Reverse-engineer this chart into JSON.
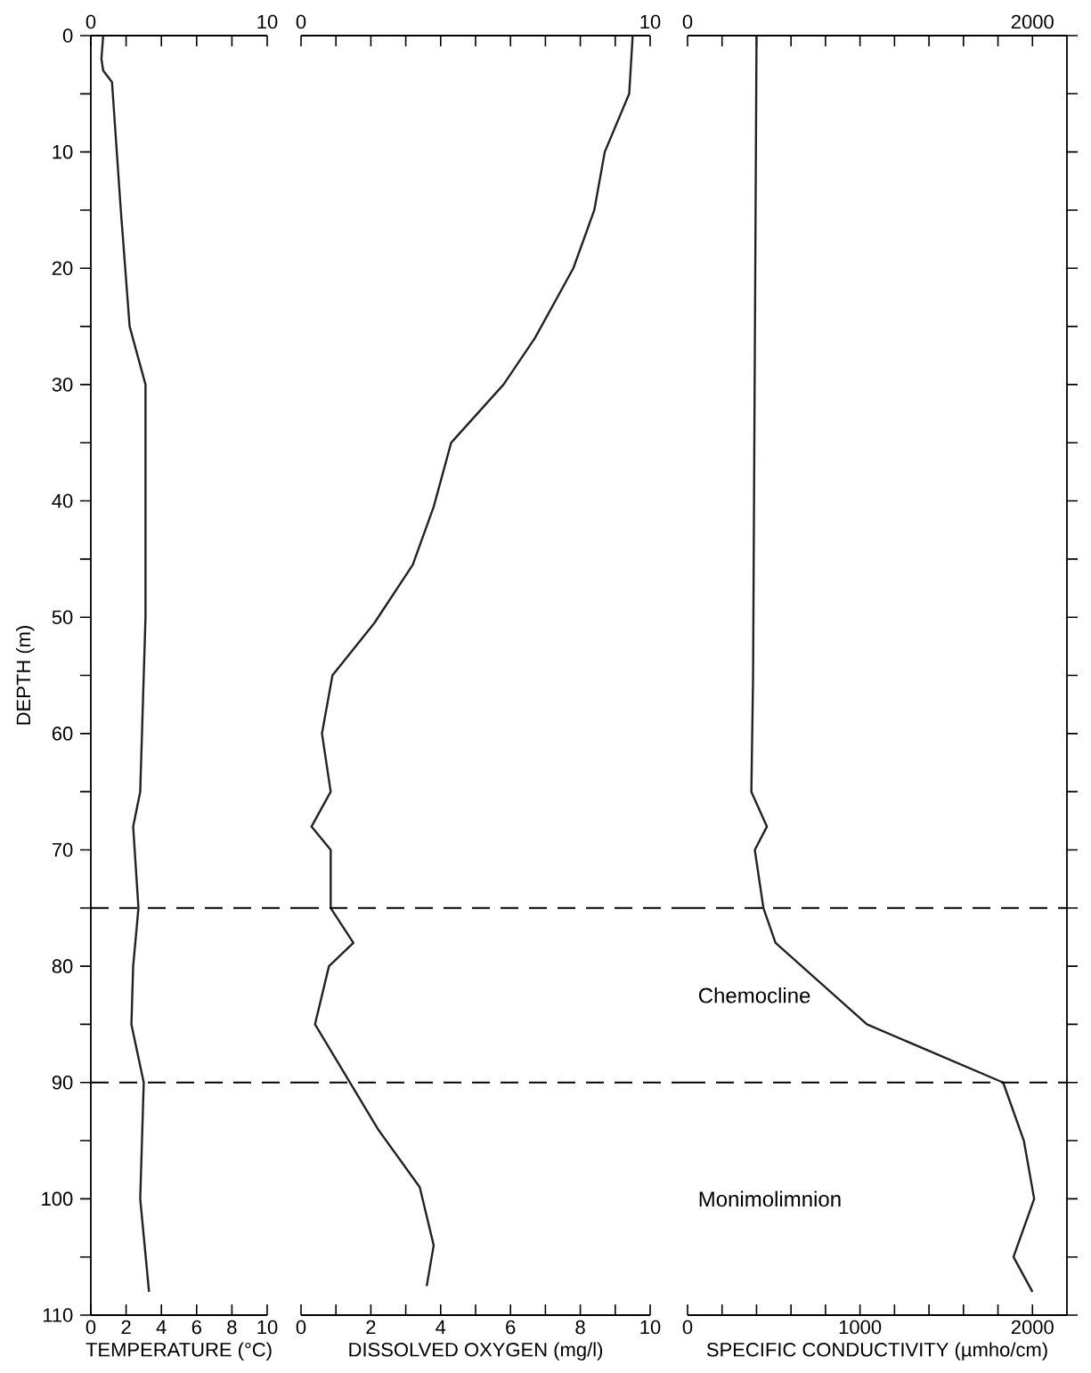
{
  "chart_data": [
    {
      "type": "line",
      "ylabel": "DEPTH (m)",
      "xlabel": "TEMPERATURE (°C)",
      "marker": "none",
      "xlim": [
        0,
        10
      ],
      "xticks": [
        0,
        2,
        4,
        6,
        8,
        10
      ],
      "x2lim": [
        0,
        10
      ],
      "x2ticks": [
        0,
        {
          "value": 2,
          "label": null
        },
        {
          "value": 4,
          "label": null
        },
        {
          "value": 6,
          "label": null
        },
        {
          "value": 8,
          "label": null
        },
        10
      ],
      "ylim": [
        110,
        0
      ],
      "yticks": [
        0,
        {
          "value": 5,
          "label": null
        },
        10,
        {
          "value": 15,
          "label": null
        },
        20,
        {
          "value": 25,
          "label": null
        },
        30,
        {
          "value": 35,
          "label": null
        },
        40,
        {
          "value": 45,
          "label": null
        },
        50,
        {
          "value": 55,
          "label": null
        },
        60,
        {
          "value": 65,
          "label": null
        },
        70,
        {
          "value": 75,
          "label": null
        },
        80,
        {
          "value": 85,
          "label": null
        },
        90,
        {
          "value": 95,
          "label": null
        },
        100,
        {
          "value": 105,
          "label": null
        },
        110
      ],
      "series": [
        {
          "color": "#222222",
          "x": [
            0.7,
            0.6,
            0.7,
            1.2,
            1.7,
            2.2,
            3.1,
            3.1,
            2.9,
            2.8,
            2.4,
            2.7,
            2.4,
            2.3,
            3.0,
            2.8,
            3.3
          ],
          "values": [
            0,
            2,
            3,
            4,
            15,
            25,
            30,
            50,
            60,
            65,
            68,
            75,
            80,
            85,
            90,
            100,
            108
          ]
        }
      ],
      "ref_lines": [
        {
          "axis": "y",
          "value": 75,
          "line_style": "dashed"
        },
        {
          "axis": "y",
          "value": 90,
          "line_style": "dashed"
        }
      ]
    },
    {
      "type": "line",
      "xlabel": "DISSOLVED OXYGEN (mg/l)",
      "marker": "none",
      "tick_labels": "x",
      "xlim": [
        0,
        10
      ],
      "xticks": [
        0,
        {
          "value": 1,
          "label": null
        },
        2,
        {
          "value": 3,
          "label": null
        },
        4,
        {
          "value": 5,
          "label": null
        },
        6,
        {
          "value": 7,
          "label": null
        },
        8,
        {
          "value": 9,
          "label": null
        },
        10
      ],
      "x2lim": [
        0,
        10
      ],
      "x2ticks": [
        0,
        {
          "value": 1,
          "label": null
        },
        {
          "value": 2,
          "label": null
        },
        {
          "value": 3,
          "label": null
        },
        {
          "value": 4,
          "label": null
        },
        {
          "value": 5,
          "label": null
        },
        {
          "value": 6,
          "label": null
        },
        {
          "value": 7,
          "label": null
        },
        {
          "value": 8,
          "label": null
        },
        {
          "value": 9,
          "label": null
        },
        10
      ],
      "ylim": [
        110,
        0
      ],
      "series": [
        {
          "color": "#222222",
          "x": [
            9.5,
            9.4,
            8.7,
            8.4,
            7.8,
            6.7,
            5.8,
            4.3,
            3.8,
            3.2,
            2.1,
            0.9,
            0.6,
            0.85,
            0.3,
            0.85,
            0.85,
            1.5,
            0.8,
            0.4,
            2.2,
            3.4,
            3.8,
            3.6
          ],
          "values": [
            0,
            5,
            10,
            15,
            20,
            26,
            30,
            35,
            40.5,
            45.5,
            50.5,
            55,
            60,
            65,
            68,
            70,
            75,
            78,
            80,
            85,
            94,
            99,
            104,
            107.5
          ]
        }
      ],
      "ref_lines": [
        {
          "axis": "y",
          "value": 75,
          "line_style": "dashed"
        },
        {
          "axis": "y",
          "value": 90,
          "line_style": "dashed"
        }
      ]
    },
    {
      "type": "line",
      "xlabel": "SPECIFIC CONDUCTIVITY (µmho/cm)",
      "marker": "none",
      "tick_labels": "x",
      "xlim": [
        0,
        2200
      ],
      "xticks": [
        0,
        {
          "value": 200,
          "label": null
        },
        {
          "value": 400,
          "label": null
        },
        {
          "value": 600,
          "label": null
        },
        {
          "value": 800,
          "label": null
        },
        1000,
        {
          "value": 1200,
          "label": null
        },
        {
          "value": 1400,
          "label": null
        },
        {
          "value": 1600,
          "label": null
        },
        {
          "value": 1800,
          "label": null
        },
        2000
      ],
      "x2lim": [
        0,
        2200
      ],
      "x2ticks": [
        0,
        {
          "value": 200,
          "label": null
        },
        {
          "value": 400,
          "label": null
        },
        {
          "value": 600,
          "label": null
        },
        {
          "value": 800,
          "label": null
        },
        {
          "value": 1000,
          "label": null
        },
        {
          "value": 1200,
          "label": null
        },
        {
          "value": 1400,
          "label": null
        },
        {
          "value": 1600,
          "label": null
        },
        {
          "value": 1800,
          "label": null
        },
        2000
      ],
      "ylim": [
        110,
        0
      ],
      "yticks": [
        {
          "value": 0,
          "label": null
        },
        {
          "value": 5,
          "label": null
        },
        {
          "value": 10,
          "label": null
        },
        {
          "value": 15,
          "label": null
        },
        {
          "value": 20,
          "label": null
        },
        {
          "value": 25,
          "label": null
        },
        {
          "value": 30,
          "label": null
        },
        {
          "value": 35,
          "label": null
        },
        {
          "value": 40,
          "label": null
        },
        {
          "value": 45,
          "label": null
        },
        {
          "value": 50,
          "label": null
        },
        {
          "value": 55,
          "label": null
        },
        {
          "value": 60,
          "label": null
        },
        {
          "value": 65,
          "label": null
        },
        {
          "value": 70,
          "label": null
        },
        {
          "value": 75,
          "label": null
        },
        {
          "value": 80,
          "label": null
        },
        {
          "value": 85,
          "label": null
        },
        {
          "value": 90,
          "label": null
        },
        {
          "value": 95,
          "label": null
        },
        {
          "value": 100,
          "label": null
        },
        {
          "value": 105,
          "label": null
        },
        {
          "value": 110,
          "label": null
        }
      ],
      "series": [
        {
          "color": "#222222",
          "x": [
            400,
            380,
            370,
            460,
            390,
            440,
            510,
            1040,
            1830,
            1950,
            2010,
            1890,
            2000
          ],
          "values": [
            0,
            55,
            65,
            68,
            70,
            75,
            78,
            85,
            90,
            95,
            100,
            105,
            108
          ]
        }
      ],
      "ref_lines": [
        {
          "axis": "y",
          "value": 75,
          "line_style": "dashed"
        },
        {
          "axis": "y",
          "value": 90,
          "line_style": "dashed"
        }
      ],
      "annotations": [
        "Chemocline",
        "Monimolimnion"
      ]
    }
  ]
}
